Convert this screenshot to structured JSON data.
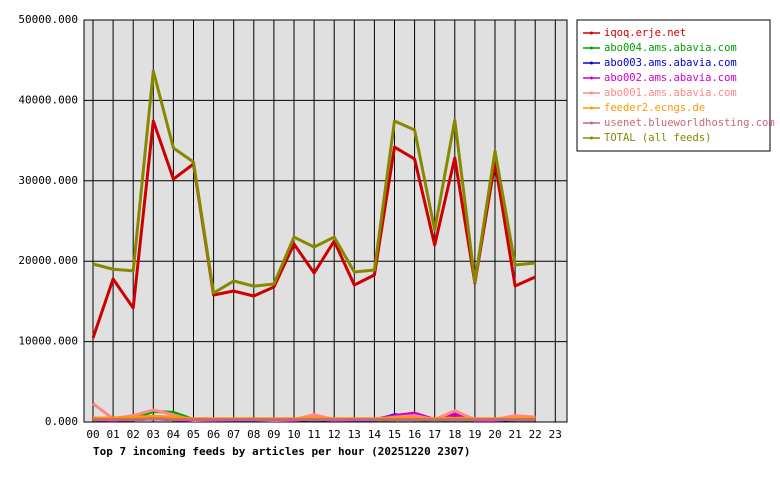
{
  "chart_data": {
    "type": "line",
    "title": "Top 7 incoming feeds by articles per hour (20251220 2307)",
    "categories": [
      "00",
      "01",
      "02",
      "03",
      "04",
      "05",
      "06",
      "07",
      "08",
      "09",
      "10",
      "11",
      "12",
      "13",
      "14",
      "15",
      "16",
      "17",
      "18",
      "19",
      "20",
      "21",
      "22",
      "23"
    ],
    "series": [
      {
        "name": "iqoq.erje.net",
        "color": "#cc0000",
        "values": [
          10450,
          17790,
          14180,
          37440,
          30220,
          32090,
          15800,
          16290,
          15670,
          16790,
          22140,
          18530,
          22510,
          17040,
          18280,
          34200,
          32710,
          22010,
          32840,
          17290,
          32340,
          16920,
          18030,
          null
        ]
      },
      {
        "name": "abo004.ams.abavia.com",
        "color": "#00a000",
        "values": [
          500,
          300,
          500,
          1300,
          1200,
          300,
          200,
          200,
          200,
          200,
          200,
          300,
          200,
          200,
          200,
          300,
          300,
          200,
          300,
          200,
          200,
          300,
          300,
          null
        ]
      },
      {
        "name": "abo003.ams.abavia.com",
        "color": "#0000cc",
        "values": [
          300,
          200,
          300,
          400,
          300,
          200,
          200,
          200,
          200,
          200,
          200,
          300,
          200,
          200,
          200,
          900,
          700,
          300,
          600,
          200,
          200,
          300,
          300,
          null
        ]
      },
      {
        "name": "abo002.ams.abavia.com",
        "color": "#cc00cc",
        "values": [
          300,
          200,
          300,
          500,
          300,
          200,
          200,
          300,
          400,
          200,
          200,
          500,
          200,
          300,
          300,
          800,
          1100,
          300,
          1000,
          200,
          200,
          500,
          400,
          null
        ]
      },
      {
        "name": "abo001.ams.abavia.com",
        "color": "#ff8888",
        "values": [
          2300,
          400,
          800,
          1500,
          900,
          200,
          300,
          300,
          300,
          200,
          300,
          900,
          300,
          400,
          300,
          600,
          800,
          300,
          1400,
          300,
          300,
          800,
          600,
          null
        ]
      },
      {
        "name": "feeder2.ecngs.de",
        "color": "#ff9900",
        "values": [
          500,
          500,
          600,
          700,
          600,
          400,
          400,
          400,
          400,
          400,
          400,
          500,
          400,
          400,
          400,
          500,
          500,
          400,
          500,
          400,
          400,
          500,
          500,
          null
        ]
      },
      {
        "name": "usenet.blueworldhosting.com",
        "color": "#cc6677",
        "values": [
          300,
          300,
          300,
          400,
          300,
          300,
          300,
          300,
          300,
          300,
          300,
          300,
          300,
          300,
          300,
          300,
          300,
          300,
          300,
          300,
          300,
          300,
          300,
          null
        ]
      },
      {
        "name": "TOTAL (all feeds)",
        "color": "#888800",
        "values": [
          19650,
          19000,
          18800,
          43650,
          34080,
          32340,
          16040,
          17540,
          16900,
          17160,
          23000,
          21770,
          23000,
          18660,
          18900,
          37440,
          36320,
          23880,
          37560,
          17410,
          33700,
          19530,
          19780,
          null
        ]
      }
    ],
    "ylim": [
      0,
      50000
    ],
    "yticks": [
      {
        "value": 0,
        "label": "0.000"
      },
      {
        "value": 10000,
        "label": "10000.000"
      },
      {
        "value": 20000,
        "label": "20000.000"
      },
      {
        "value": 30000,
        "label": "30000.000"
      },
      {
        "value": 40000,
        "label": "40000.000"
      },
      {
        "value": 50000,
        "label": "50000.000"
      }
    ],
    "grid": true
  }
}
